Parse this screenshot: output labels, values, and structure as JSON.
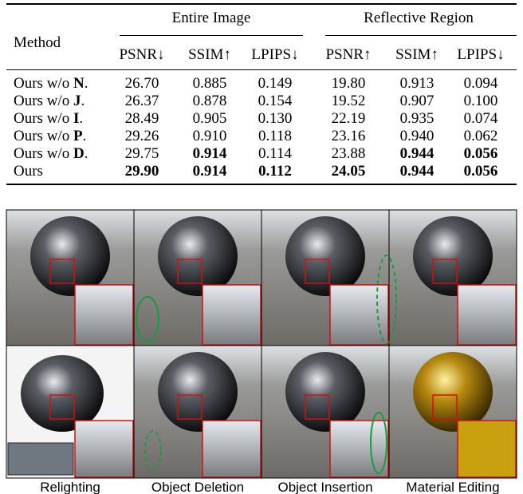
{
  "table": {
    "group_headers": [
      "Entire Image",
      "Reflective Region"
    ],
    "method_header": "Method",
    "column_headers": [
      "PSNR↓",
      "SSIM↑",
      "LPIPS↓",
      "PSNR↑",
      "SSIM↑",
      "LPIPS↓"
    ],
    "rows": [
      {
        "method": "Ours w/o N.",
        "cells": [
          "26.70",
          "0.885",
          "0.149",
          "19.80",
          "0.913",
          "0.094"
        ],
        "bold": []
      },
      {
        "method": "Ours w/o J.",
        "cells": [
          "26.37",
          "0.878",
          "0.154",
          "19.52",
          "0.907",
          "0.100"
        ],
        "bold": []
      },
      {
        "method": "Ours w/o I.",
        "cells": [
          "28.49",
          "0.905",
          "0.130",
          "22.19",
          "0.935",
          "0.074"
        ],
        "bold": []
      },
      {
        "method": "Ours w/o P.",
        "cells": [
          "29.26",
          "0.910",
          "0.118",
          "23.16",
          "0.940",
          "0.062"
        ],
        "bold": []
      },
      {
        "method": "Ours w/o D.",
        "cells": [
          "29.75",
          "0.914",
          "0.114",
          "23.88",
          "0.944",
          "0.056"
        ],
        "bold": [
          1,
          4,
          5
        ]
      },
      {
        "method": "Ours",
        "cells": [
          "29.90",
          "0.914",
          "0.112",
          "24.05",
          "0.944",
          "0.056"
        ],
        "bold": [
          0,
          1,
          2,
          3,
          4,
          5
        ]
      }
    ]
  },
  "figure": {
    "captions": [
      "Relighting",
      "Object Deletion",
      "Object Insertion",
      "Material Editing"
    ]
  }
}
